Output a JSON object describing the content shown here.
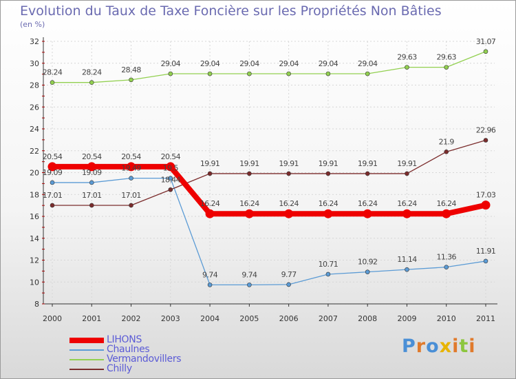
{
  "title": "Evolution du Taux de Taxe Foncière sur les Propriétés Non Bâties",
  "subtitle": "(en %)",
  "logo": {
    "text": "Proxiti",
    "letters": [
      "P",
      "r",
      "o",
      "x",
      "i",
      "t",
      "i"
    ],
    "colors": [
      "#4a8fd6",
      "#e07a2c",
      "#4a8fd6",
      "#e8b400",
      "#e07a2c",
      "#8cc63e",
      "#e07a2c"
    ]
  },
  "chart_data": {
    "type": "line",
    "title": "Evolution du Taux de Taxe Foncière sur les Propriétés Non Bâties",
    "ylabel": "(en %)",
    "xlabel": "",
    "ylim": [
      8,
      32
    ],
    "yticks": [
      "8",
      "10",
      "12",
      "14",
      "16",
      "18",
      "20",
      "22",
      "24",
      "26",
      "28",
      "30",
      "32"
    ],
    "grid": true,
    "legend_position": "bottom-left",
    "categories": [
      "2000",
      "2001",
      "2002",
      "2003",
      "2004",
      "2005",
      "2006",
      "2007",
      "2008",
      "2009",
      "2010",
      "2011"
    ],
    "series": [
      {
        "name": "LIHONS",
        "color": "#ee0000",
        "emphasis": true,
        "values": [
          20.54,
          20.54,
          20.54,
          20.54,
          16.24,
          16.24,
          16.24,
          16.24,
          16.24,
          16.24,
          16.24,
          17.03
        ],
        "labels": [
          "20.54",
          "20.54",
          "20.54",
          "20.54",
          "16.24",
          "16.24",
          "16.24",
          "16.24",
          "16.24",
          "16.24",
          "16.24",
          "17.03"
        ]
      },
      {
        "name": "Chaulnes",
        "color": "#5b9bd5",
        "emphasis": false,
        "values": [
          19.09,
          19.09,
          19.49,
          19.49,
          9.74,
          9.74,
          9.77,
          10.71,
          10.92,
          11.14,
          11.36,
          11.91
        ],
        "labels": [
          "19.09",
          "19.09",
          "19.49",
          "19.5",
          "9.74",
          "9.74",
          "9.77",
          "10.71",
          "10.92",
          "11.14",
          "11.36",
          "11.91"
        ]
      },
      {
        "name": "Vermandovillers",
        "color": "#92d050",
        "emphasis": false,
        "values": [
          28.24,
          28.24,
          28.48,
          29.04,
          29.04,
          29.04,
          29.04,
          29.04,
          29.04,
          29.63,
          29.63,
          31.07
        ],
        "labels": [
          "28.24",
          "28.24",
          "28.48",
          "29.04",
          "29.04",
          "29.04",
          "29.04",
          "29.04",
          "29.04",
          "29.63",
          "29.63",
          "31.07"
        ]
      },
      {
        "name": "Chilly",
        "color": "#7b2c2c",
        "emphasis": false,
        "values": [
          17.01,
          17.01,
          17.01,
          18.44,
          19.91,
          19.91,
          19.91,
          19.91,
          19.91,
          19.91,
          21.9,
          22.96
        ],
        "labels": [
          "17.01",
          "17.01",
          "17.01",
          "18.44",
          "19.91",
          "19.91",
          "19.91",
          "19.91",
          "19.91",
          "19.91",
          "21.9",
          "22.96"
        ]
      }
    ]
  }
}
